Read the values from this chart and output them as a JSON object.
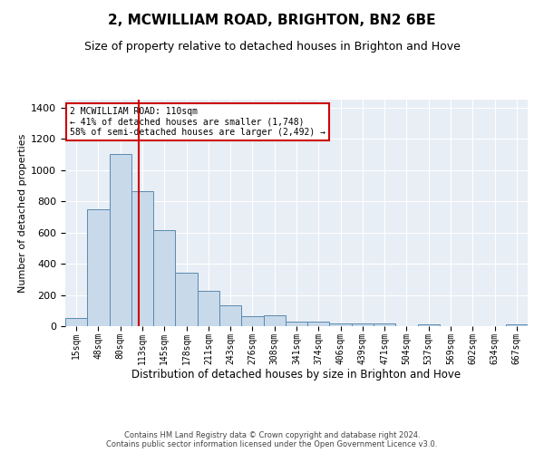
{
  "title": "2, MCWILLIAM ROAD, BRIGHTON, BN2 6BE",
  "subtitle": "Size of property relative to detached houses in Brighton and Hove",
  "xlabel": "Distribution of detached houses by size in Brighton and Hove",
  "ylabel": "Number of detached properties",
  "footer_line1": "Contains HM Land Registry data © Crown copyright and database right 2024.",
  "footer_line2": "Contains public sector information licensed under the Open Government Licence v3.0.",
  "bar_labels": [
    "15sqm",
    "48sqm",
    "80sqm",
    "113sqm",
    "145sqm",
    "178sqm",
    "211sqm",
    "243sqm",
    "276sqm",
    "308sqm",
    "341sqm",
    "374sqm",
    "406sqm",
    "439sqm",
    "471sqm",
    "504sqm",
    "537sqm",
    "569sqm",
    "602sqm",
    "634sqm",
    "667sqm"
  ],
  "bar_values": [
    50,
    750,
    1100,
    865,
    615,
    345,
    225,
    135,
    65,
    70,
    30,
    30,
    20,
    15,
    15,
    0,
    10,
    0,
    0,
    0,
    10
  ],
  "bar_color": "#c8d9ea",
  "bar_edge_color": "#5a8ab0",
  "vline_x": 2.85,
  "vline_color": "#cc0000",
  "ylim": [
    0,
    1450
  ],
  "yticks": [
    0,
    200,
    400,
    600,
    800,
    1000,
    1200,
    1400
  ],
  "annotation_line1": "2 MCWILLIAM ROAD: 110sqm",
  "annotation_line2": "← 41% of detached houses are smaller (1,748)",
  "annotation_line3": "58% of semi-detached houses are larger (2,492) →",
  "annotation_box_color": "#cc0000",
  "plot_background": "#e8eef5",
  "grid_color": "#ffffff",
  "title_fontsize": 11,
  "subtitle_fontsize": 9,
  "ylabel_fontsize": 8,
  "xlabel_fontsize": 8.5,
  "tick_fontsize": 7,
  "footer_fontsize": 6
}
